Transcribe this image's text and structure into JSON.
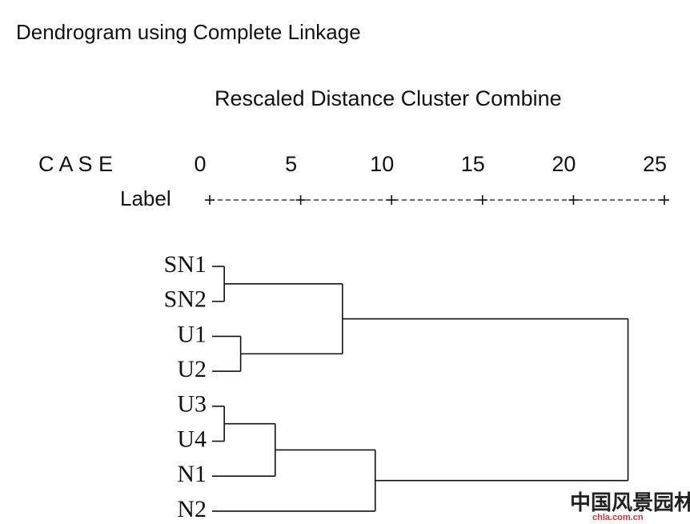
{
  "chart_data": {
    "type": "dendrogram",
    "title": "Dendrogram using Complete Linkage",
    "x_label": "Rescaled Distance Cluster Combine",
    "case_header": "C A S E",
    "label_header": "Label",
    "xlim": [
      0,
      25
    ],
    "xticks": [
      0,
      5,
      10,
      15,
      20,
      25
    ],
    "tree": {
      "height": 23,
      "children": [
        {
          "height": 7.3,
          "children": [
            {
              "height": 0.8,
              "children": [
                "SN1",
                "SN2"
              ]
            },
            {
              "height": 1.7,
              "children": [
                "U1",
                "U2"
              ]
            }
          ]
        },
        {
          "height": 9.1,
          "children": [
            {
              "height": 3.6,
              "children": [
                {
                  "height": 0.8,
                  "children": [
                    "U3",
                    "U4"
                  ]
                },
                "N1"
              ]
            },
            "N2"
          ]
        }
      ]
    },
    "watermark": "中国风景园林网",
    "watermark_url": "chla.com.cn"
  }
}
